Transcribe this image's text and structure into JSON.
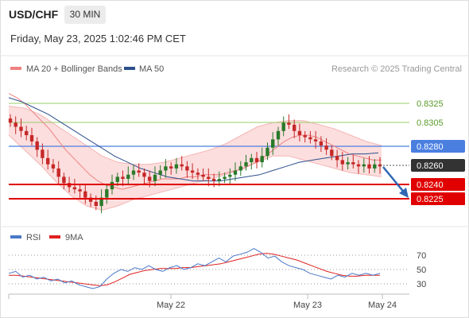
{
  "header": {
    "symbol": "USD/CHF",
    "timeframe": "30 MIN",
    "datetime": "Friday, May 23, 2025 1:02:46 PM CET"
  },
  "main_legend": [
    {
      "label": "MA 20 + Bollinger Bands",
      "color": "#f08080"
    },
    {
      "label": "MA 50",
      "color": "#2c4f8c"
    }
  ],
  "credit": "Research © 2025 Trading Central",
  "rsi_legend": [
    {
      "label": "RSI",
      "color": "#4a78c9"
    },
    {
      "label": "9MA",
      "color": "#e02020"
    }
  ],
  "colors": {
    "resistance": "#9acd6a",
    "current": "#4a7fe0",
    "support": "#e00000",
    "last_price_box": "#333333",
    "arrow": "#2f66b4",
    "bollinger_fill": "#fcd8d8",
    "candle_up": "#2a7a2a",
    "candle_down": "#c62828",
    "rsi": "#4a78c9",
    "rsi_ma": "#e02020"
  },
  "chart_data": [
    {
      "type": "candlestick",
      "title": "USD/CHF 30 MIN",
      "x_tick_labels": [
        "May 22",
        "May 23",
        "May 24"
      ],
      "ylim": [
        0.8206,
        0.8345
      ],
      "levels": [
        {
          "value": "0.8325",
          "kind": "resistance"
        },
        {
          "value": "0.8305",
          "kind": "resistance"
        },
        {
          "value": "0.8280",
          "kind": "current"
        },
        {
          "value": "0.8260",
          "kind": "last-price"
        },
        {
          "value": "0.8240",
          "kind": "support"
        },
        {
          "value": "0.8225",
          "kind": "support"
        }
      ],
      "close_series": [
        0.8302,
        0.8298,
        0.8294,
        0.829,
        0.8284,
        0.8276,
        0.8268,
        0.8262,
        0.8258,
        0.825,
        0.8244,
        0.824,
        0.8238,
        0.8236,
        0.823,
        0.8226,
        0.8222,
        0.823,
        0.8238,
        0.8245,
        0.825,
        0.8248,
        0.8252,
        0.8256,
        0.8254,
        0.825,
        0.8246,
        0.8252,
        0.8256,
        0.826,
        0.8258,
        0.8262,
        0.826,
        0.8256,
        0.8254,
        0.8252,
        0.825,
        0.8248,
        0.8246,
        0.8248,
        0.825,
        0.8252,
        0.8256,
        0.826,
        0.8264,
        0.8268,
        0.8264,
        0.827,
        0.8278,
        0.8286,
        0.8294,
        0.8302,
        0.83,
        0.8294,
        0.829,
        0.8288,
        0.8286,
        0.8284,
        0.828,
        0.8276,
        0.827,
        0.8266,
        0.8262,
        0.8264,
        0.8262,
        0.826,
        0.8262,
        0.8258,
        0.8262,
        0.826
      ],
      "ma20": [
        0.833,
        0.8326,
        0.832,
        0.8312,
        0.8304,
        0.8296,
        0.8286,
        0.8276,
        0.8268,
        0.826,
        0.8252,
        0.8246,
        0.8242,
        0.824,
        0.8238,
        0.824,
        0.8242,
        0.8244,
        0.8246,
        0.8248,
        0.8248,
        0.8248,
        0.825,
        0.825,
        0.8252,
        0.8252,
        0.8252,
        0.8254,
        0.8256,
        0.8258,
        0.8262,
        0.8266,
        0.8272,
        0.8278,
        0.8284,
        0.8288,
        0.829,
        0.829,
        0.8288,
        0.8284,
        0.828,
        0.8276,
        0.8272,
        0.827,
        0.8268,
        0.8266,
        0.8266
      ],
      "ma50": [
        0.8326,
        0.8322,
        0.8316,
        0.831,
        0.8302,
        0.8294,
        0.8286,
        0.8278,
        0.827,
        0.8264,
        0.8258,
        0.8254,
        0.825,
        0.8248,
        0.8246,
        0.8246,
        0.8246,
        0.8248,
        0.825,
        0.8252,
        0.8256,
        0.826,
        0.8264,
        0.8266,
        0.8268,
        0.827,
        0.8272,
        0.8272,
        0.8273
      ],
      "bollinger_upper": [
        0.8318,
        0.8316,
        0.831,
        0.83,
        0.829,
        0.828,
        0.827,
        0.8264,
        0.8262,
        0.8262,
        0.8264,
        0.8268,
        0.8272,
        0.8276,
        0.8282,
        0.829,
        0.8298,
        0.8302,
        0.8304,
        0.8304,
        0.83,
        0.8296,
        0.829,
        0.8284,
        0.828
      ],
      "bollinger_lower": [
        0.829,
        0.8276,
        0.8262,
        0.8246,
        0.8232,
        0.8222,
        0.8218,
        0.8222,
        0.8228,
        0.8232,
        0.8236,
        0.824,
        0.8244,
        0.8248,
        0.8252,
        0.8258,
        0.8264,
        0.827,
        0.827,
        0.8266,
        0.8262,
        0.8258,
        0.8254,
        0.8252,
        0.825
      ],
      "forecast": "arrow pointing down toward 0.8225"
    },
    {
      "type": "line",
      "title": "RSI",
      "series_names": [
        "RSI",
        "9MA"
      ],
      "y_tick_labels": [
        "70",
        "50",
        "30"
      ],
      "ylim": [
        20,
        80
      ],
      "rsi": [
        46,
        48,
        42,
        44,
        40,
        42,
        38,
        40,
        36,
        38,
        34,
        32,
        30,
        32,
        40,
        46,
        50,
        48,
        52,
        50,
        54,
        50,
        48,
        52,
        54,
        50,
        52,
        56,
        54,
        58,
        62,
        58,
        64,
        66,
        68,
        72,
        68,
        62,
        64,
        58,
        54,
        52,
        50,
        46,
        44,
        42,
        40,
        44,
        42,
        46,
        44,
        46,
        44,
        46
      ],
      "rsi_ma": [
        44,
        44,
        43,
        42,
        41,
        40,
        39,
        38,
        37,
        36,
        35,
        34,
        33,
        34,
        37,
        41,
        45,
        47,
        49,
        50,
        51,
        51,
        51,
        52,
        52,
        53,
        54,
        55,
        56,
        58,
        60,
        62,
        64,
        66,
        67,
        66,
        64,
        62,
        60,
        57,
        54,
        51,
        48,
        46,
        44,
        43,
        43,
        44,
        44,
        44
      ]
    }
  ]
}
